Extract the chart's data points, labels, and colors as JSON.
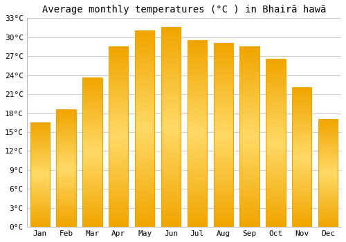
{
  "title": "Average monthly temperatures (°C ) in Bhairā hawā",
  "months": [
    "Jan",
    "Feb",
    "Mar",
    "Apr",
    "May",
    "Jun",
    "Jul",
    "Aug",
    "Sep",
    "Oct",
    "Nov",
    "Dec"
  ],
  "temperatures": [
    16.5,
    18.5,
    23.5,
    28.5,
    31.0,
    31.5,
    29.5,
    29.0,
    28.5,
    26.5,
    22.0,
    17.0
  ],
  "bar_color_center": "#FFD966",
  "bar_color_edge": "#F0A500",
  "ylim": [
    0,
    33
  ],
  "yticks": [
    0,
    3,
    6,
    9,
    12,
    15,
    18,
    21,
    24,
    27,
    30,
    33
  ],
  "ytick_labels": [
    "0°C",
    "3°C",
    "6°C",
    "9°C",
    "12°C",
    "15°C",
    "18°C",
    "21°C",
    "24°C",
    "27°C",
    "30°C",
    "33°C"
  ],
  "background_color": "#ffffff",
  "grid_color": "#cccccc",
  "title_fontsize": 10,
  "tick_fontsize": 8,
  "bar_width": 0.75
}
